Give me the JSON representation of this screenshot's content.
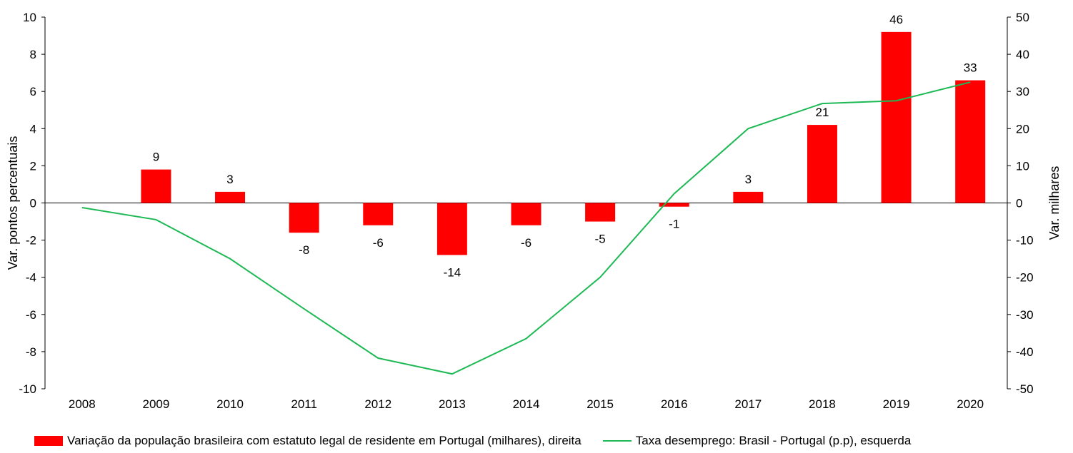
{
  "chart_data": {
    "type": "bar",
    "categories": [
      "2008",
      "2009",
      "2010",
      "2011",
      "2012",
      "2013",
      "2014",
      "2015",
      "2016",
      "2017",
      "2018",
      "2019",
      "2020"
    ],
    "series": [
      {
        "name": "Variação da população brasileira com estatuto legal de residente em Portugal (milhares), direita",
        "type": "bar",
        "axis": "right",
        "color": "#ff0000",
        "values": [
          null,
          9,
          3,
          -8,
          -6,
          -14,
          -6,
          -5,
          -1,
          3,
          21,
          46,
          33
        ],
        "labels": [
          "",
          "9",
          "3",
          "-8",
          "-6",
          "-14",
          "-6",
          "-5",
          "-1",
          "3",
          "21",
          "46",
          "33"
        ]
      },
      {
        "name": "Taxa desemprego: Brasil - Portugal (p.p), esquerda",
        "type": "line",
        "axis": "left",
        "color": "#1db954",
        "values": [
          -0.25,
          -0.9,
          -3.0,
          -5.7,
          -8.35,
          -9.2,
          -7.3,
          -4.0,
          0.5,
          4.0,
          5.35,
          5.5,
          6.5
        ]
      }
    ],
    "y_left": {
      "label": "Var. pontos percentuais",
      "lim": [
        -10,
        10
      ],
      "ticks": [
        "10",
        "8",
        "6",
        "4",
        "2",
        "0",
        "-2",
        "-4",
        "-6",
        "-8",
        "-10"
      ]
    },
    "y_right": {
      "label": "Var. milhares",
      "lim": [
        -50,
        50
      ],
      "ticks": [
        "50",
        "40",
        "30",
        "20",
        "10",
        "0",
        "-10",
        "-20",
        "-30",
        "-40",
        "-50"
      ]
    },
    "legend_position": "bottom",
    "grid": false
  }
}
